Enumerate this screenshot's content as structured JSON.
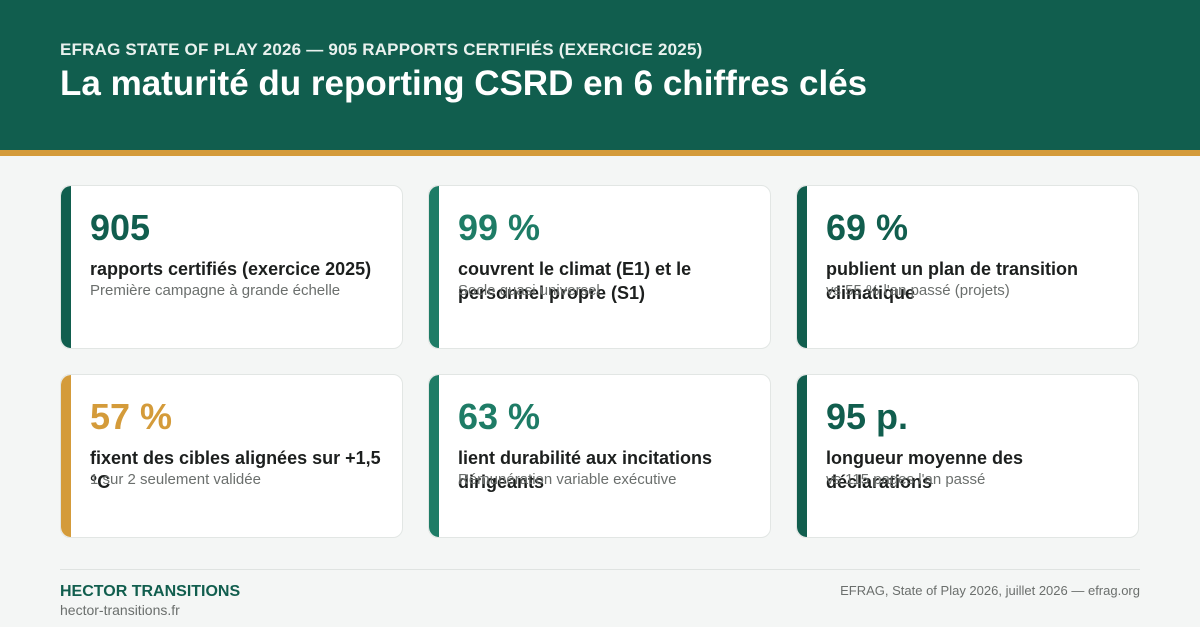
{
  "header": {
    "kicker": "EFRAG STATE OF PLAY 2026 — 905 RAPPORTS CERTIFIÉS (EXERCICE 2025)",
    "title": "La maturité du reporting CSRD en 6 chiffres clés"
  },
  "colors": {
    "brand_green": "#115e4e",
    "mid_green": "#1e7c66",
    "gold": "#d49b3a"
  },
  "cards": [
    {
      "value": "905",
      "label": "rapports certifiés (exercice 2025)",
      "sub": "Première campagne à grande échelle",
      "accent": "#115e4e",
      "value_color": "#115e4e"
    },
    {
      "value": "99 %",
      "label": "couvrent le climat (E1) et le personnel propre (S1)",
      "sub": "Socle quasi universel",
      "accent": "#1e7c66",
      "value_color": "#1e7c66"
    },
    {
      "value": "69 %",
      "label": "publient un plan de transition climatique",
      "sub": "vs 55 % l'an passé (projets)",
      "accent": "#115e4e",
      "value_color": "#115e4e"
    },
    {
      "value": "57 %",
      "label": "fixent des cibles alignées sur +1,5 °C",
      "sub": "1 sur 2 seulement validée",
      "accent": "#d49b3a",
      "value_color": "#d49b3a"
    },
    {
      "value": "63 %",
      "label": "lient durabilité aux incitations dirigeants",
      "sub": "Rémunération variable exécutive",
      "accent": "#1e7c66",
      "value_color": "#1e7c66"
    },
    {
      "value": "95 p.",
      "label": "longueur moyenne des déclarations",
      "sub": "vs 115 pages l'an passé",
      "accent": "#115e4e",
      "value_color": "#115e4e"
    }
  ],
  "footer": {
    "brand": "HECTOR TRANSITIONS",
    "url": "hector-transitions.fr",
    "source": "EFRAG, State of Play 2026, juillet 2026 — efrag.org"
  }
}
